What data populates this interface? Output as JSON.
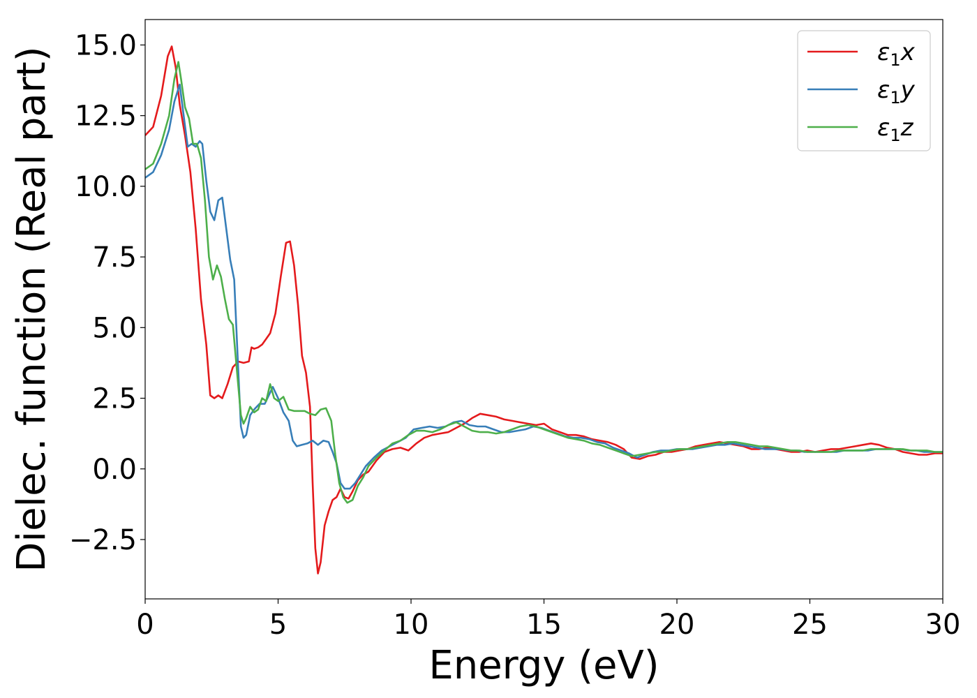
{
  "chart_data": {
    "type": "line",
    "title": "",
    "xlabel": "Energy (eV)",
    "ylabel": "Dielec. function (Real part)",
    "xlim": [
      0,
      30
    ],
    "ylim": [
      -4.6,
      15.9
    ],
    "xticks": [
      0,
      5,
      10,
      15,
      20,
      25,
      30
    ],
    "xtick_labels": [
      "0",
      "5",
      "10",
      "15",
      "20",
      "25",
      "30"
    ],
    "yticks": [
      -2.5,
      0.0,
      2.5,
      5.0,
      7.5,
      10.0,
      12.5,
      15.0
    ],
    "ytick_labels": [
      "−2.5",
      "0.0",
      "2.5",
      "5.0",
      "7.5",
      "10.0",
      "12.5",
      "15.0"
    ],
    "grid": false,
    "legend_position": "top-right",
    "series": [
      {
        "name": "ε₁x",
        "legend_base": "ε",
        "legend_sub": "1",
        "legend_var": "x",
        "color": "#e41a1c",
        "x": [
          0,
          0.3,
          0.6,
          0.85,
          1.0,
          1.15,
          1.3,
          1.5,
          1.7,
          1.9,
          2.1,
          2.3,
          2.45,
          2.6,
          2.75,
          2.9,
          3.1,
          3.3,
          3.5,
          3.7,
          3.9,
          4.0,
          4.1,
          4.25,
          4.4,
          4.55,
          4.7,
          4.9,
          5.1,
          5.3,
          5.45,
          5.6,
          5.75,
          5.9,
          6.05,
          6.2,
          6.3,
          6.4,
          6.5,
          6.6,
          6.75,
          6.9,
          7.05,
          7.2,
          7.35,
          7.5,
          7.65,
          7.8,
          8.0,
          8.2,
          8.4,
          8.7,
          9.0,
          9.3,
          9.6,
          9.9,
          10.2,
          10.5,
          10.8,
          11.1,
          11.4,
          11.7,
          12.0,
          12.3,
          12.6,
          12.9,
          13.2,
          13.5,
          13.8,
          14.1,
          14.4,
          14.7,
          15.0,
          15.3,
          15.6,
          15.9,
          16.2,
          16.5,
          16.8,
          17.1,
          17.4,
          17.7,
          18.0,
          18.3,
          18.6,
          18.9,
          19.2,
          19.5,
          19.8,
          20.1,
          20.4,
          20.7,
          21.0,
          21.3,
          21.6,
          21.9,
          22.2,
          22.5,
          22.8,
          23.1,
          23.4,
          23.7,
          24.0,
          24.3,
          24.6,
          24.9,
          25.2,
          25.5,
          25.8,
          26.1,
          26.4,
          26.7,
          27.0,
          27.3,
          27.6,
          27.9,
          28.2,
          28.5,
          28.8,
          29.1,
          29.4,
          29.7,
          30.0
        ],
        "y": [
          11.8,
          12.1,
          13.2,
          14.6,
          14.95,
          14.2,
          12.9,
          11.8,
          10.5,
          8.5,
          6.0,
          4.4,
          2.6,
          2.5,
          2.6,
          2.5,
          3.0,
          3.6,
          3.8,
          3.75,
          3.8,
          4.3,
          4.25,
          4.3,
          4.4,
          4.6,
          4.8,
          5.5,
          6.8,
          8.0,
          8.05,
          7.2,
          5.8,
          4.0,
          3.4,
          2.2,
          -0.5,
          -2.8,
          -3.7,
          -3.3,
          -2.0,
          -1.5,
          -1.1,
          -1.0,
          -0.7,
          -1.0,
          -1.05,
          -0.8,
          -0.4,
          -0.2,
          -0.1,
          0.3,
          0.6,
          0.7,
          0.75,
          0.65,
          0.9,
          1.1,
          1.2,
          1.25,
          1.3,
          1.45,
          1.6,
          1.8,
          1.95,
          1.9,
          1.85,
          1.75,
          1.7,
          1.65,
          1.6,
          1.55,
          1.6,
          1.4,
          1.3,
          1.2,
          1.2,
          1.15,
          1.05,
          1.0,
          0.95,
          0.85,
          0.7,
          0.4,
          0.35,
          0.45,
          0.5,
          0.6,
          0.6,
          0.65,
          0.7,
          0.8,
          0.85,
          0.9,
          0.95,
          0.9,
          0.85,
          0.8,
          0.7,
          0.7,
          0.75,
          0.7,
          0.65,
          0.6,
          0.6,
          0.65,
          0.6,
          0.65,
          0.7,
          0.7,
          0.75,
          0.8,
          0.85,
          0.9,
          0.85,
          0.75,
          0.7,
          0.6,
          0.55,
          0.5,
          0.5,
          0.55,
          0.55
        ]
      },
      {
        "name": "ε₁y",
        "legend_base": "ε",
        "legend_sub": "1",
        "legend_var": "y",
        "color": "#377eb8",
        "x": [
          0,
          0.3,
          0.6,
          0.9,
          1.1,
          1.3,
          1.45,
          1.6,
          1.75,
          1.9,
          2.05,
          2.15,
          2.3,
          2.45,
          2.6,
          2.75,
          2.9,
          3.05,
          3.2,
          3.35,
          3.5,
          3.6,
          3.7,
          3.8,
          3.95,
          4.1,
          4.3,
          4.5,
          4.65,
          4.8,
          5.0,
          5.2,
          5.4,
          5.55,
          5.7,
          5.9,
          6.1,
          6.3,
          6.5,
          6.7,
          6.9,
          7.05,
          7.2,
          7.35,
          7.5,
          7.7,
          7.9,
          8.1,
          8.3,
          8.6,
          8.9,
          9.2,
          9.5,
          9.8,
          10.1,
          10.4,
          10.7,
          11.0,
          11.3,
          11.6,
          11.9,
          12.2,
          12.5,
          12.8,
          13.1,
          13.4,
          13.7,
          14.0,
          14.3,
          14.6,
          14.9,
          15.2,
          15.5,
          15.8,
          16.1,
          16.4,
          16.7,
          17.0,
          17.3,
          17.6,
          17.9,
          18.2,
          18.5,
          18.8,
          19.1,
          19.4,
          19.7,
          20.0,
          20.3,
          20.6,
          20.9,
          21.2,
          21.5,
          21.8,
          22.1,
          22.4,
          22.7,
          23.0,
          23.3,
          23.6,
          23.9,
          24.2,
          24.5,
          24.8,
          25.1,
          25.4,
          25.7,
          26.0,
          26.3,
          26.6,
          26.9,
          27.2,
          27.5,
          27.8,
          28.1,
          28.4,
          28.7,
          29.0,
          29.3,
          29.6,
          30.0
        ],
        "y": [
          10.3,
          10.5,
          11.1,
          12.0,
          13.0,
          13.6,
          12.5,
          11.4,
          11.5,
          11.4,
          11.6,
          11.5,
          10.2,
          9.1,
          8.8,
          9.5,
          9.6,
          8.5,
          7.4,
          6.7,
          3.5,
          1.5,
          1.1,
          1.2,
          1.9,
          2.1,
          2.3,
          2.3,
          2.6,
          2.9,
          2.5,
          2.0,
          1.7,
          1.0,
          0.8,
          0.85,
          0.9,
          1.0,
          0.85,
          1.0,
          0.95,
          0.6,
          0.2,
          -0.5,
          -0.7,
          -0.7,
          -0.5,
          -0.2,
          0.1,
          0.4,
          0.65,
          0.8,
          0.95,
          1.1,
          1.4,
          1.45,
          1.5,
          1.45,
          1.5,
          1.65,
          1.7,
          1.55,
          1.5,
          1.5,
          1.4,
          1.3,
          1.3,
          1.35,
          1.4,
          1.5,
          1.45,
          1.35,
          1.25,
          1.15,
          1.1,
          1.1,
          1.05,
          0.95,
          0.9,
          0.75,
          0.65,
          0.55,
          0.4,
          0.5,
          0.6,
          0.65,
          0.65,
          0.7,
          0.7,
          0.7,
          0.75,
          0.8,
          0.85,
          0.85,
          0.9,
          0.85,
          0.8,
          0.75,
          0.7,
          0.7,
          0.7,
          0.65,
          0.65,
          0.6,
          0.6,
          0.6,
          0.6,
          0.6,
          0.65,
          0.65,
          0.65,
          0.65,
          0.7,
          0.7,
          0.7,
          0.7,
          0.65,
          0.65,
          0.6,
          0.6,
          0.6
        ]
      },
      {
        "name": "ε₁z",
        "legend_base": "ε",
        "legend_sub": "1",
        "legend_var": "z",
        "color": "#4daf4a",
        "x": [
          0,
          0.3,
          0.6,
          0.9,
          1.1,
          1.25,
          1.35,
          1.5,
          1.65,
          1.8,
          1.95,
          2.1,
          2.25,
          2.4,
          2.55,
          2.7,
          2.85,
          3.0,
          3.15,
          3.3,
          3.45,
          3.6,
          3.7,
          3.8,
          3.95,
          4.1,
          4.25,
          4.4,
          4.55,
          4.7,
          4.85,
          5.0,
          5.2,
          5.4,
          5.6,
          5.8,
          6.0,
          6.2,
          6.4,
          6.6,
          6.8,
          7.0,
          7.15,
          7.3,
          7.45,
          7.6,
          7.8,
          8.0,
          8.2,
          8.4,
          8.7,
          9.0,
          9.3,
          9.6,
          9.9,
          10.2,
          10.5,
          10.8,
          11.1,
          11.4,
          11.7,
          12.0,
          12.3,
          12.6,
          12.9,
          13.2,
          13.5,
          13.8,
          14.1,
          14.4,
          14.7,
          15.0,
          15.3,
          15.6,
          15.9,
          16.2,
          16.5,
          16.8,
          17.1,
          17.4,
          17.7,
          18.0,
          18.3,
          18.6,
          18.9,
          19.2,
          19.5,
          19.8,
          20.1,
          20.4,
          20.7,
          21.0,
          21.3,
          21.6,
          21.9,
          22.2,
          22.5,
          22.8,
          23.1,
          23.4,
          23.7,
          24.0,
          24.3,
          24.6,
          24.9,
          25.2,
          25.5,
          25.8,
          26.1,
          26.4,
          26.7,
          27.0,
          27.3,
          27.6,
          27.9,
          28.2,
          28.5,
          28.8,
          29.1,
          29.4,
          29.7,
          30.0
        ],
        "y": [
          10.6,
          10.8,
          11.5,
          12.5,
          13.8,
          14.4,
          13.8,
          12.8,
          12.4,
          11.5,
          11.5,
          11.0,
          9.5,
          7.5,
          6.7,
          7.2,
          6.8,
          6.0,
          5.3,
          5.1,
          3.5,
          1.9,
          1.6,
          1.8,
          2.2,
          2.0,
          2.1,
          2.5,
          2.4,
          3.0,
          2.5,
          2.4,
          2.55,
          2.1,
          2.05,
          2.05,
          2.05,
          1.95,
          1.9,
          2.1,
          2.15,
          1.7,
          0.5,
          -0.5,
          -1.0,
          -1.2,
          -1.1,
          -0.6,
          -0.3,
          0.1,
          0.4,
          0.65,
          0.9,
          1.0,
          1.2,
          1.35,
          1.35,
          1.3,
          1.4,
          1.55,
          1.65,
          1.5,
          1.35,
          1.3,
          1.3,
          1.25,
          1.3,
          1.4,
          1.5,
          1.55,
          1.5,
          1.4,
          1.3,
          1.2,
          1.1,
          1.05,
          1.0,
          0.9,
          0.85,
          0.75,
          0.65,
          0.55,
          0.45,
          0.5,
          0.55,
          0.6,
          0.6,
          0.65,
          0.7,
          0.7,
          0.75,
          0.8,
          0.85,
          0.9,
          0.95,
          0.95,
          0.9,
          0.85,
          0.8,
          0.8,
          0.75,
          0.7,
          0.65,
          0.65,
          0.6,
          0.6,
          0.6,
          0.6,
          0.65,
          0.65,
          0.65,
          0.65,
          0.7,
          0.7,
          0.7,
          0.7,
          0.7,
          0.65,
          0.65,
          0.65,
          0.6,
          0.6
        ]
      }
    ]
  }
}
